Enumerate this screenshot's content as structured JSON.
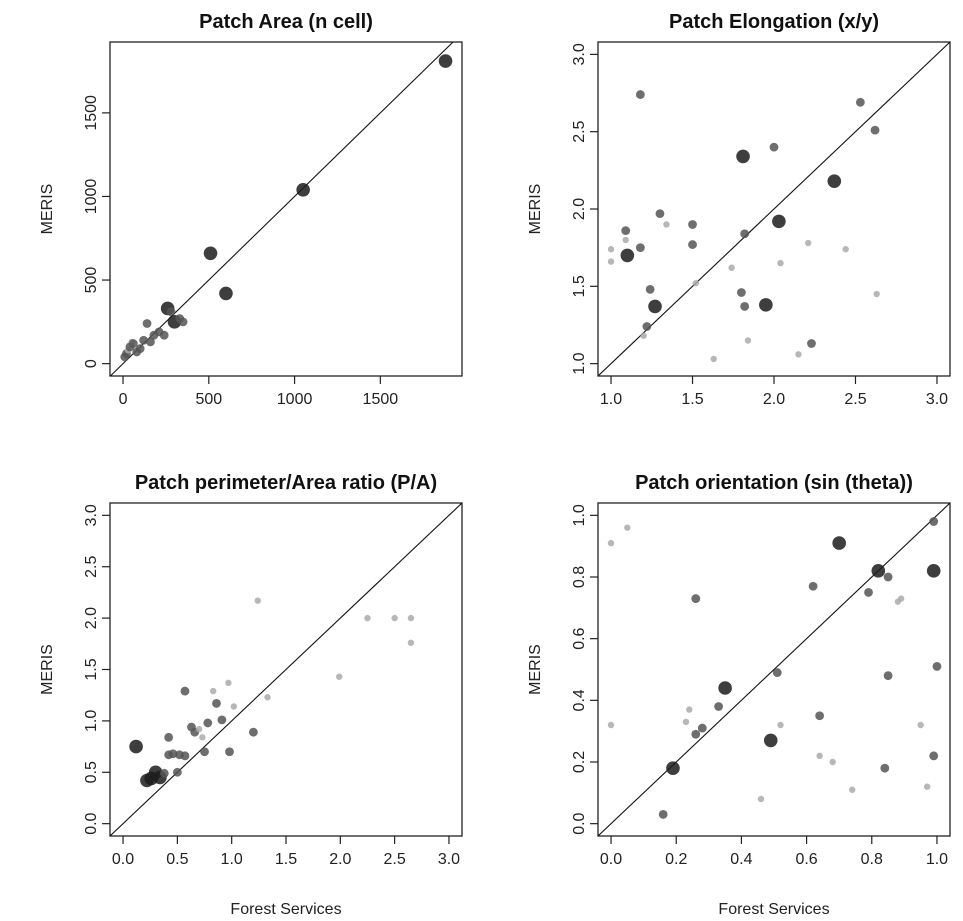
{
  "chart_data": [
    {
      "type": "scatter",
      "title": "Patch Area (n cell)",
      "xlabel": "",
      "ylabel": "MERIS",
      "xlim": [
        0,
        1900
      ],
      "ylim": [
        0,
        1850
      ],
      "xticks": [
        0,
        500,
        1000,
        1500
      ],
      "yticks": [
        0,
        500,
        1000,
        1500
      ],
      "identity_line": true,
      "points": [
        {
          "x": 10,
          "y": 40,
          "size": 2
        },
        {
          "x": 20,
          "y": 60,
          "size": 2
        },
        {
          "x": 30,
          "y": 80,
          "size": 1
        },
        {
          "x": 40,
          "y": 100,
          "size": 2
        },
        {
          "x": 50,
          "y": 130,
          "size": 1
        },
        {
          "x": 60,
          "y": 120,
          "size": 2
        },
        {
          "x": 80,
          "y": 70,
          "size": 2
        },
        {
          "x": 100,
          "y": 90,
          "size": 2
        },
        {
          "x": 120,
          "y": 140,
          "size": 2
        },
        {
          "x": 140,
          "y": 240,
          "size": 2
        },
        {
          "x": 160,
          "y": 130,
          "size": 2
        },
        {
          "x": 180,
          "y": 170,
          "size": 2
        },
        {
          "x": 210,
          "y": 190,
          "size": 2
        },
        {
          "x": 240,
          "y": 170,
          "size": 2
        },
        {
          "x": 260,
          "y": 330,
          "size": 3
        },
        {
          "x": 280,
          "y": 310,
          "size": 2
        },
        {
          "x": 300,
          "y": 250,
          "size": 3
        },
        {
          "x": 330,
          "y": 270,
          "size": 2
        },
        {
          "x": 350,
          "y": 250,
          "size": 2
        },
        {
          "x": 510,
          "y": 660,
          "size": 3
        },
        {
          "x": 600,
          "y": 420,
          "size": 3
        },
        {
          "x": 1050,
          "y": 1040,
          "size": 3
        },
        {
          "x": 1880,
          "y": 1810,
          "size": 3
        }
      ]
    },
    {
      "type": "scatter",
      "title": "Patch Elongation (x/y)",
      "xlabel": "",
      "ylabel": "MERIS",
      "xlim": [
        1.0,
        3.0
      ],
      "ylim": [
        1.0,
        3.0
      ],
      "xticks": [
        1.0,
        1.5,
        2.0,
        2.5,
        3.0
      ],
      "yticks": [
        1.0,
        1.5,
        2.0,
        2.5,
        3.0
      ],
      "tick_labels": [
        "1.0",
        "1.5",
        "2.0",
        "2.5",
        "3.0"
      ],
      "identity_line": true,
      "points": [
        {
          "x": 1.0,
          "y": 1.66,
          "size": 1
        },
        {
          "x": 1.0,
          "y": 1.74,
          "size": 1
        },
        {
          "x": 1.09,
          "y": 1.86,
          "size": 2
        },
        {
          "x": 1.09,
          "y": 1.8,
          "size": 1
        },
        {
          "x": 1.1,
          "y": 1.7,
          "size": 3
        },
        {
          "x": 1.18,
          "y": 2.74,
          "size": 2
        },
        {
          "x": 1.18,
          "y": 1.75,
          "size": 2
        },
        {
          "x": 1.2,
          "y": 1.18,
          "size": 1
        },
        {
          "x": 1.22,
          "y": 1.24,
          "size": 2
        },
        {
          "x": 1.24,
          "y": 1.48,
          "size": 2
        },
        {
          "x": 1.27,
          "y": 1.37,
          "size": 3
        },
        {
          "x": 1.3,
          "y": 1.97,
          "size": 2
        },
        {
          "x": 1.34,
          "y": 1.9,
          "size": 1
        },
        {
          "x": 1.5,
          "y": 1.9,
          "size": 2
        },
        {
          "x": 1.5,
          "y": 1.77,
          "size": 2
        },
        {
          "x": 1.52,
          "y": 1.52,
          "size": 1
        },
        {
          "x": 1.63,
          "y": 1.03,
          "size": 1
        },
        {
          "x": 1.74,
          "y": 1.62,
          "size": 1
        },
        {
          "x": 1.81,
          "y": 2.34,
          "size": 3
        },
        {
          "x": 1.8,
          "y": 1.46,
          "size": 2
        },
        {
          "x": 1.82,
          "y": 1.84,
          "size": 2
        },
        {
          "x": 1.82,
          "y": 1.37,
          "size": 2
        },
        {
          "x": 1.84,
          "y": 1.15,
          "size": 1
        },
        {
          "x": 1.95,
          "y": 1.38,
          "size": 3
        },
        {
          "x": 2.0,
          "y": 2.4,
          "size": 2
        },
        {
          "x": 2.03,
          "y": 1.92,
          "size": 3
        },
        {
          "x": 2.04,
          "y": 1.65,
          "size": 1
        },
        {
          "x": 2.15,
          "y": 1.06,
          "size": 1
        },
        {
          "x": 2.21,
          "y": 1.78,
          "size": 1
        },
        {
          "x": 2.23,
          "y": 1.13,
          "size": 2
        },
        {
          "x": 2.37,
          "y": 2.18,
          "size": 3
        },
        {
          "x": 2.44,
          "y": 1.74,
          "size": 1
        },
        {
          "x": 2.53,
          "y": 2.69,
          "size": 2
        },
        {
          "x": 2.62,
          "y": 2.51,
          "size": 2
        },
        {
          "x": 2.63,
          "y": 1.45,
          "size": 1
        }
      ]
    },
    {
      "type": "scatter",
      "title": "Patch perimeter/Area ratio (P/A)",
      "xlabel": "Forest Services",
      "ylabel": "MERIS",
      "xlim": [
        0.0,
        3.0
      ],
      "ylim": [
        0.0,
        3.0
      ],
      "xticks": [
        0.0,
        0.5,
        1.0,
        1.5,
        2.0,
        2.5,
        3.0
      ],
      "yticks": [
        0.0,
        0.5,
        1.0,
        1.5,
        2.0,
        2.5,
        3.0
      ],
      "tick_labels": [
        "0.0",
        "0.5",
        "1.0",
        "1.5",
        "2.0",
        "2.5",
        "3.0"
      ],
      "identity_line": true,
      "points": [
        {
          "x": 0.12,
          "y": 0.75,
          "size": 3
        },
        {
          "x": 0.22,
          "y": 0.42,
          "size": 3
        },
        {
          "x": 0.26,
          "y": 0.44,
          "size": 3
        },
        {
          "x": 0.3,
          "y": 0.5,
          "size": 3
        },
        {
          "x": 0.34,
          "y": 0.45,
          "size": 3
        },
        {
          "x": 0.38,
          "y": 0.49,
          "size": 2
        },
        {
          "x": 0.42,
          "y": 0.84,
          "size": 2
        },
        {
          "x": 0.42,
          "y": 0.67,
          "size": 2
        },
        {
          "x": 0.46,
          "y": 0.68,
          "size": 2
        },
        {
          "x": 0.5,
          "y": 0.5,
          "size": 2
        },
        {
          "x": 0.52,
          "y": 0.67,
          "size": 2
        },
        {
          "x": 0.57,
          "y": 1.29,
          "size": 2
        },
        {
          "x": 0.57,
          "y": 0.66,
          "size": 2
        },
        {
          "x": 0.63,
          "y": 0.94,
          "size": 2
        },
        {
          "x": 0.66,
          "y": 0.89,
          "size": 2
        },
        {
          "x": 0.7,
          "y": 0.92,
          "size": 1
        },
        {
          "x": 0.73,
          "y": 0.84,
          "size": 1
        },
        {
          "x": 0.75,
          "y": 0.7,
          "size": 2
        },
        {
          "x": 0.78,
          "y": 0.98,
          "size": 2
        },
        {
          "x": 0.83,
          "y": 1.29,
          "size": 1
        },
        {
          "x": 0.86,
          "y": 1.17,
          "size": 2
        },
        {
          "x": 0.91,
          "y": 1.01,
          "size": 2
        },
        {
          "x": 0.97,
          "y": 1.37,
          "size": 1
        },
        {
          "x": 0.98,
          "y": 0.7,
          "size": 2
        },
        {
          "x": 1.02,
          "y": 1.14,
          "size": 1
        },
        {
          "x": 1.2,
          "y": 0.89,
          "size": 2
        },
        {
          "x": 1.24,
          "y": 2.17,
          "size": 1
        },
        {
          "x": 1.33,
          "y": 1.23,
          "size": 1
        },
        {
          "x": 1.99,
          "y": 1.43,
          "size": 1
        },
        {
          "x": 2.25,
          "y": 2.0,
          "size": 1
        },
        {
          "x": 2.5,
          "y": 2.0,
          "size": 1
        },
        {
          "x": 2.65,
          "y": 2.0,
          "size": 1
        },
        {
          "x": 2.65,
          "y": 1.76,
          "size": 1
        }
      ]
    },
    {
      "type": "scatter",
      "title": "Patch orientation (sin (theta))",
      "xlabel": "Forest Services",
      "ylabel": "MERIS",
      "xlim": [
        0.0,
        1.0
      ],
      "ylim": [
        0.0,
        1.0
      ],
      "xticks": [
        0.0,
        0.2,
        0.4,
        0.6,
        0.8,
        1.0
      ],
      "yticks": [
        0.0,
        0.2,
        0.4,
        0.6,
        0.8,
        1.0
      ],
      "tick_labels": [
        "0.0",
        "0.2",
        "0.4",
        "0.6",
        "0.8",
        "1.0"
      ],
      "identity_line": true,
      "points": [
        {
          "x": 0.0,
          "y": 0.91,
          "size": 1
        },
        {
          "x": 0.05,
          "y": 0.96,
          "size": 1
        },
        {
          "x": 0.0,
          "y": 0.32,
          "size": 1
        },
        {
          "x": 0.16,
          "y": 0.03,
          "size": 2
        },
        {
          "x": 0.19,
          "y": 0.18,
          "size": 3
        },
        {
          "x": 0.23,
          "y": 0.33,
          "size": 1
        },
        {
          "x": 0.24,
          "y": 0.37,
          "size": 1
        },
        {
          "x": 0.26,
          "y": 0.29,
          "size": 2
        },
        {
          "x": 0.26,
          "y": 0.73,
          "size": 2
        },
        {
          "x": 0.28,
          "y": 0.31,
          "size": 2
        },
        {
          "x": 0.33,
          "y": 0.38,
          "size": 2
        },
        {
          "x": 0.35,
          "y": 0.44,
          "size": 3
        },
        {
          "x": 0.46,
          "y": 0.08,
          "size": 1
        },
        {
          "x": 0.49,
          "y": 0.27,
          "size": 3
        },
        {
          "x": 0.51,
          "y": 0.49,
          "size": 2
        },
        {
          "x": 0.52,
          "y": 0.32,
          "size": 1
        },
        {
          "x": 0.62,
          "y": 0.77,
          "size": 2
        },
        {
          "x": 0.64,
          "y": 0.35,
          "size": 2
        },
        {
          "x": 0.64,
          "y": 0.22,
          "size": 1
        },
        {
          "x": 0.68,
          "y": 0.2,
          "size": 1
        },
        {
          "x": 0.7,
          "y": 0.91,
          "size": 3
        },
        {
          "x": 0.74,
          "y": 0.11,
          "size": 1
        },
        {
          "x": 0.79,
          "y": 0.75,
          "size": 2
        },
        {
          "x": 0.82,
          "y": 0.82,
          "size": 3
        },
        {
          "x": 0.84,
          "y": 0.18,
          "size": 2
        },
        {
          "x": 0.85,
          "y": 0.8,
          "size": 2
        },
        {
          "x": 0.85,
          "y": 0.48,
          "size": 2
        },
        {
          "x": 0.88,
          "y": 0.72,
          "size": 1
        },
        {
          "x": 0.89,
          "y": 0.73,
          "size": 1
        },
        {
          "x": 0.95,
          "y": 0.32,
          "size": 1
        },
        {
          "x": 0.97,
          "y": 0.12,
          "size": 1
        },
        {
          "x": 0.99,
          "y": 0.98,
          "size": 2
        },
        {
          "x": 0.99,
          "y": 0.82,
          "size": 3
        },
        {
          "x": 0.99,
          "y": 0.22,
          "size": 2
        },
        {
          "x": 1.0,
          "y": 0.51,
          "size": 2
        }
      ]
    }
  ]
}
